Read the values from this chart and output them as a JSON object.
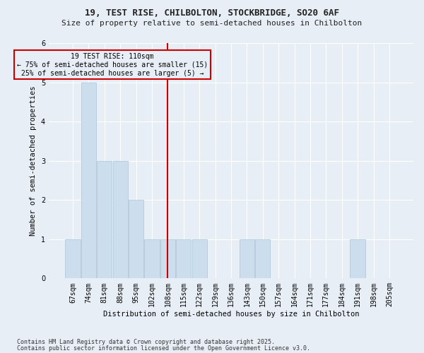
{
  "title1": "19, TEST RISE, CHILBOLTON, STOCKBRIDGE, SO20 6AF",
  "title2": "Size of property relative to semi-detached houses in Chilbolton",
  "xlabel": "Distribution of semi-detached houses by size in Chilbolton",
  "ylabel": "Number of semi-detached properties",
  "categories": [
    "67sqm",
    "74sqm",
    "81sqm",
    "88sqm",
    "95sqm",
    "102sqm",
    "108sqm",
    "115sqm",
    "122sqm",
    "129sqm",
    "136sqm",
    "143sqm",
    "150sqm",
    "157sqm",
    "164sqm",
    "171sqm",
    "177sqm",
    "184sqm",
    "191sqm",
    "198sqm",
    "205sqm"
  ],
  "values": [
    1,
    5,
    3,
    3,
    2,
    1,
    1,
    1,
    1,
    0,
    0,
    1,
    1,
    0,
    0,
    0,
    0,
    0,
    1,
    0,
    0
  ],
  "bar_color": "#ccdded",
  "bar_edgecolor": "#aac4d8",
  "vline_color": "#cc0000",
  "annotation_title": "19 TEST RISE: 110sqm",
  "annotation_line1": "← 75% of semi-detached houses are smaller (15)",
  "annotation_line2": "25% of semi-detached houses are larger (5) →",
  "annotation_box_color": "#cc0000",
  "ylim": [
    0,
    6
  ],
  "yticks": [
    0,
    1,
    2,
    3,
    4,
    5,
    6
  ],
  "background_color": "#e8eef5",
  "grid_color": "#ffffff",
  "footnote1": "Contains HM Land Registry data © Crown copyright and database right 2025.",
  "footnote2": "Contains public sector information licensed under the Open Government Licence v3.0."
}
